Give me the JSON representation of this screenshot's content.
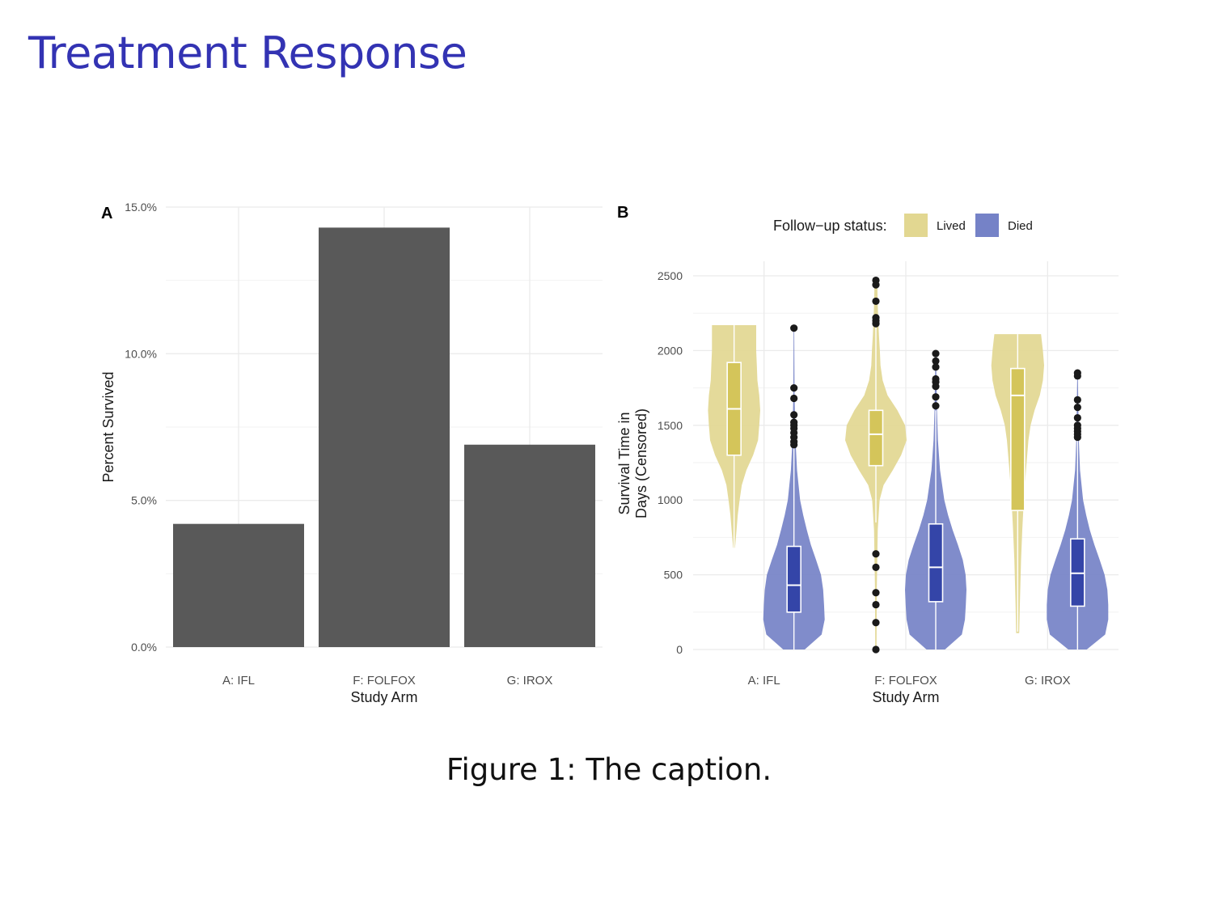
{
  "slide": {
    "title": "Treatment Response",
    "caption": "Figure 1: The caption."
  },
  "colors": {
    "bar": "#595959",
    "lived": "#e2d791",
    "lived_box": "#d4c55a",
    "died": "#7582c7",
    "died_box": "#3445a8",
    "grid": "#ebebeb",
    "title": "#3333b3"
  },
  "chart_data": [
    {
      "type": "bar",
      "panel_label": "A",
      "categories": [
        "A: IFL",
        "F: FOLFOX",
        "G: IROX"
      ],
      "values": [
        4.2,
        14.3,
        6.9
      ],
      "xlabel": "Study Arm",
      "ylabel": "Percent Survived",
      "ylim": [
        0,
        15
      ],
      "yticks": [
        0,
        5,
        10,
        15
      ],
      "ytick_labels": [
        "0.0%",
        "5.0%",
        "10.0%",
        "15.0%"
      ],
      "grid": true
    },
    {
      "type": "violin",
      "panel_label": "B",
      "categories": [
        "A: IFL",
        "F: FOLFOX",
        "G: IROX"
      ],
      "xlabel": "Study Arm",
      "ylabel": [
        "Survival Time in",
        "Days (Censored)"
      ],
      "ylim": [
        0,
        2500
      ],
      "yticks": [
        0,
        500,
        1000,
        1500,
        2000,
        2500
      ],
      "ytick_labels": [
        "0",
        "500",
        "1000",
        "1500",
        "2000",
        "2500"
      ],
      "legend": {
        "title": "Follow−up status:",
        "position": "top",
        "entries": [
          "Lived",
          "Died"
        ]
      },
      "grid": true,
      "series": [
        {
          "name": "Lived",
          "groups": [
            {
              "category": "A: IFL",
              "box": {
                "q1": 1300,
                "median": 1610,
                "q3": 1920,
                "whisker_low": 680,
                "whisker_high": 2170
              },
              "outliers": [],
              "density": [
                [
                  680,
                  0.03
                ],
                [
                  800,
                  0.08
                ],
                [
                  900,
                  0.12
                ],
                [
                  1000,
                  0.18
                ],
                [
                  1100,
                  0.25
                ],
                [
                  1200,
                  0.4
                ],
                [
                  1300,
                  0.62
                ],
                [
                  1400,
                  0.78
                ],
                [
                  1500,
                  0.82
                ],
                [
                  1600,
                  0.85
                ],
                [
                  1700,
                  0.82
                ],
                [
                  1800,
                  0.76
                ],
                [
                  1900,
                  0.74
                ],
                [
                  2000,
                  0.72
                ],
                [
                  2100,
                  0.72
                ],
                [
                  2170,
                  0.72
                ]
              ]
            },
            {
              "category": "F: FOLFOX",
              "box": {
                "q1": 1230,
                "median": 1440,
                "q3": 1600,
                "whisker_low": 850,
                "whisker_high": 2170
              },
              "outliers": [
                0,
                180,
                300,
                380,
                550,
                640,
                2180,
                2200,
                2220,
                2330,
                2440,
                2470
              ],
              "density": [
                [
                  0,
                  0.02
                ],
                [
                  400,
                  0.03
                ],
                [
                  800,
                  0.06
                ],
                [
                  1000,
                  0.12
                ],
                [
                  1100,
                  0.25
                ],
                [
                  1200,
                  0.55
                ],
                [
                  1300,
                  0.82
                ],
                [
                  1400,
                  1.0
                ],
                [
                  1500,
                  0.95
                ],
                [
                  1600,
                  0.7
                ],
                [
                  1700,
                  0.38
                ],
                [
                  1800,
                  0.22
                ],
                [
                  1900,
                  0.15
                ],
                [
                  2000,
                  0.13
                ],
                [
                  2100,
                  0.1
                ],
                [
                  2200,
                  0.08
                ],
                [
                  2300,
                  0.06
                ],
                [
                  2400,
                  0.05
                ],
                [
                  2480,
                  0.04
                ]
              ]
            },
            {
              "category": "G: IROX",
              "box": {
                "q1": 930,
                "median": 1700,
                "q3": 1880,
                "whisker_low": 120,
                "whisker_high": 2110
              },
              "outliers": [],
              "density": [
                [
                  110,
                  0.05
                ],
                [
                  300,
                  0.07
                ],
                [
                  600,
                  0.11
                ],
                [
                  800,
                  0.15
                ],
                [
                  1000,
                  0.2
                ],
                [
                  1200,
                  0.27
                ],
                [
                  1400,
                  0.35
                ],
                [
                  1500,
                  0.42
                ],
                [
                  1600,
                  0.55
                ],
                [
                  1700,
                  0.72
                ],
                [
                  1800,
                  0.82
                ],
                [
                  1900,
                  0.86
                ],
                [
                  2000,
                  0.82
                ],
                [
                  2110,
                  0.76
                ]
              ]
            }
          ]
        },
        {
          "name": "Died",
          "groups": [
            {
              "category": "A: IFL",
              "box": {
                "q1": 250,
                "median": 430,
                "q3": 690,
                "whisker_low": 0,
                "whisker_high": 1350
              },
              "outliers": [
                1370,
                1390,
                1420,
                1450,
                1480,
                1500,
                1520,
                1570,
                1680,
                1750,
                2150
              ],
              "density": [
                [
                  0,
                  0.35
                ],
                [
                  100,
                  0.9
                ],
                [
                  200,
                  1.0
                ],
                [
                  300,
                  0.98
                ],
                [
                  400,
                  0.95
                ],
                [
                  500,
                  0.88
                ],
                [
                  600,
                  0.72
                ],
                [
                  700,
                  0.55
                ],
                [
                  800,
                  0.42
                ],
                [
                  900,
                  0.3
                ],
                [
                  1000,
                  0.2
                ],
                [
                  1200,
                  0.1
                ],
                [
                  1400,
                  0.05
                ],
                [
                  1700,
                  0.02
                ],
                [
                  2150,
                  0.01
                ]
              ]
            },
            {
              "category": "F: FOLFOX",
              "box": {
                "q1": 320,
                "median": 550,
                "q3": 840,
                "whisker_low": 0,
                "whisker_high": 1600
              },
              "outliers": [
                1630,
                1690,
                1760,
                1790,
                1810,
                1890,
                1930,
                1980
              ],
              "density": [
                [
                  0,
                  0.3
                ],
                [
                  100,
                  0.85
                ],
                [
                  200,
                  0.95
                ],
                [
                  300,
                  0.98
                ],
                [
                  400,
                  1.0
                ],
                [
                  500,
                  0.97
                ],
                [
                  600,
                  0.88
                ],
                [
                  700,
                  0.72
                ],
                [
                  800,
                  0.55
                ],
                [
                  900,
                  0.4
                ],
                [
                  1000,
                  0.28
                ],
                [
                  1200,
                  0.14
                ],
                [
                  1400,
                  0.07
                ],
                [
                  1600,
                  0.04
                ],
                [
                  1980,
                  0.01
                ]
              ]
            },
            {
              "category": "G: IROX",
              "box": {
                "q1": 290,
                "median": 510,
                "q3": 740,
                "whisker_low": 0,
                "whisker_high": 1400
              },
              "outliers": [
                1420,
                1440,
                1460,
                1480,
                1500,
                1550,
                1620,
                1670,
                1830,
                1850
              ],
              "density": [
                [
                  0,
                  0.3
                ],
                [
                  100,
                  0.9
                ],
                [
                  200,
                  1.0
                ],
                [
                  300,
                  1.0
                ],
                [
                  400,
                  0.97
                ],
                [
                  500,
                  0.88
                ],
                [
                  600,
                  0.72
                ],
                [
                  700,
                  0.55
                ],
                [
                  800,
                  0.4
                ],
                [
                  900,
                  0.28
                ],
                [
                  1000,
                  0.18
                ],
                [
                  1200,
                  0.08
                ],
                [
                  1400,
                  0.04
                ],
                [
                  1700,
                  0.02
                ],
                [
                  1850,
                  0.01
                ]
              ]
            }
          ]
        }
      ]
    }
  ]
}
